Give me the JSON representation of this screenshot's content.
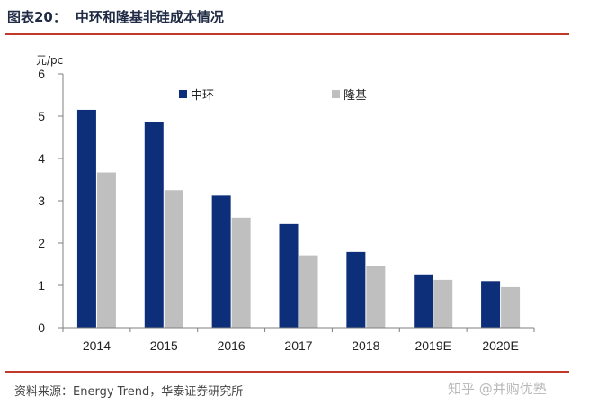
{
  "header": {
    "figure_label": "图表20：",
    "title": "中环和隆基非硅成本情况"
  },
  "footer": {
    "source": "资料来源：Energy Trend，华泰证券研究所",
    "watermark": "知乎 @并购优塾"
  },
  "colors": {
    "rule": "#c0392b",
    "series_1": "#0d2f7a",
    "series_2": "#bfbfbf"
  },
  "chart_data": {
    "type": "bar",
    "title": "中环和隆基非硅成本情况",
    "xlabel": "",
    "ylabel": "元/pc",
    "ylim": [
      0,
      6
    ],
    "yticks": [
      0,
      1,
      2,
      3,
      4,
      5,
      6
    ],
    "grid": false,
    "legend_position": "top",
    "categories": [
      "2014",
      "2015",
      "2016",
      "2017",
      "2018",
      "2019E",
      "2020E"
    ],
    "series": [
      {
        "name": "中环",
        "color": "#0d2f7a",
        "values": [
          5.15,
          4.87,
          3.12,
          2.45,
          1.79,
          1.26,
          1.1
        ]
      },
      {
        "name": "隆基",
        "color": "#bfbfbf",
        "values": [
          3.67,
          3.25,
          2.6,
          1.71,
          1.46,
          1.13,
          0.96
        ]
      }
    ]
  }
}
